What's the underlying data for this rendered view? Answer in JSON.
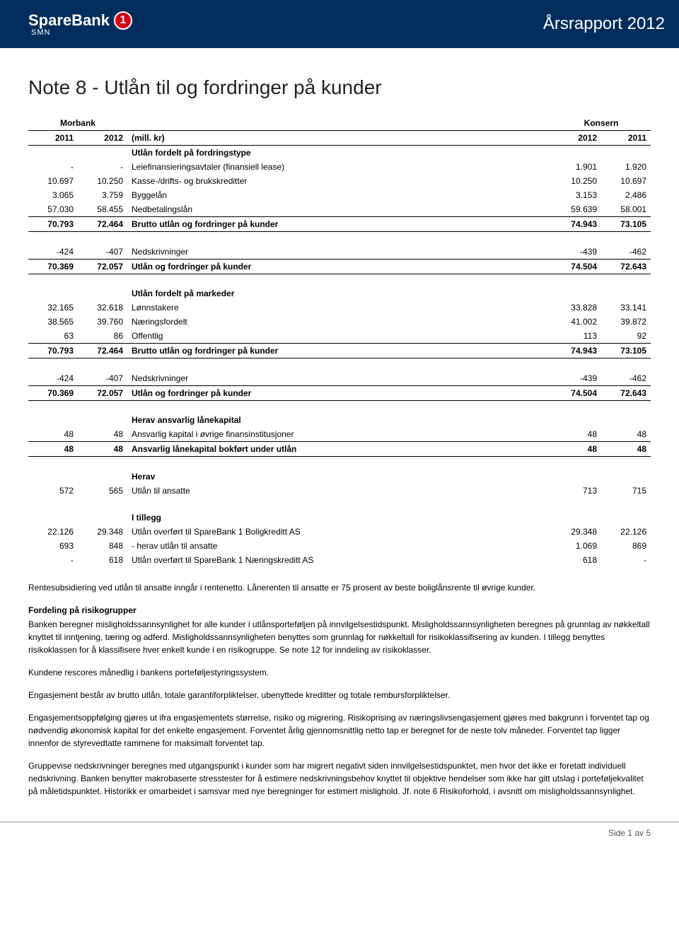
{
  "header": {
    "brand": "SpareBank",
    "badge": "1",
    "sub": "SMN",
    "title": "Årsrapport 2012"
  },
  "page_title": "Note 8 - Utlån til og fordringer på kunder",
  "table": {
    "group_left": "Morbank",
    "group_right": "Konsern",
    "col1": "2011",
    "col2": "2012",
    "col_mid": "(mill. kr)",
    "col3": "2012",
    "col4": "2011",
    "sections": [
      {
        "head": "Utlån fordelt på fordringstype",
        "rows": [
          {
            "a": "-",
            "b": "-",
            "l": "Leiefinansieringsavtaler (finansiell lease)",
            "c": "1.901",
            "d": "1.920"
          },
          {
            "a": "10.697",
            "b": "10.250",
            "l": "Kasse-/drifts- og brukskreditter",
            "c": "10.250",
            "d": "10.697"
          },
          {
            "a": "3.065",
            "b": "3.759",
            "l": "Byggelån",
            "c": "3.153",
            "d": "2.486"
          },
          {
            "a": "57.030",
            "b": "58.455",
            "l": "Nedbetalingslån",
            "c": "59.639",
            "d": "58.001"
          }
        ],
        "total": {
          "a": "70.793",
          "b": "72.464",
          "l": "Brutto utlån og fordringer på kunder",
          "c": "74.943",
          "d": "73.105"
        }
      },
      {
        "rows": [
          {
            "a": "-424",
            "b": "-407",
            "l": "Nedskrivninger",
            "c": "-439",
            "d": "-462"
          }
        ],
        "total": {
          "a": "70.369",
          "b": "72.057",
          "l": "Utlån og fordringer på kunder",
          "c": "74.504",
          "d": "72.643"
        }
      },
      {
        "head": "Utlån fordelt på markeder",
        "rows": [
          {
            "a": "32.165",
            "b": "32.618",
            "l": "Lønnstakere",
            "c": "33.828",
            "d": "33.141"
          },
          {
            "a": "38.565",
            "b": "39.760",
            "l": "Næringsfordelt",
            "c": "41.002",
            "d": "39.872"
          },
          {
            "a": "63",
            "b": "86",
            "l": "Offentlig",
            "c": "113",
            "d": "92"
          }
        ],
        "total": {
          "a": "70.793",
          "b": "72.464",
          "l": "Brutto utlån og fordringer på kunder",
          "c": "74.943",
          "d": "73.105"
        }
      },
      {
        "rows": [
          {
            "a": "-424",
            "b": "-407",
            "l": "Nedskrivninger",
            "c": "-439",
            "d": "-462"
          }
        ],
        "total": {
          "a": "70.369",
          "b": "72.057",
          "l": "Utlån og fordringer på kunder",
          "c": "74.504",
          "d": "72.643"
        }
      },
      {
        "head": "Herav ansvarlig lånekapital",
        "rows": [
          {
            "a": "48",
            "b": "48",
            "l": "Ansvarlig kapital i øvrige finansinstitusjoner",
            "c": "48",
            "d": "48"
          }
        ],
        "total": {
          "a": "48",
          "b": "48",
          "l": "Ansvarlig lånekapital bokført under utlån",
          "c": "48",
          "d": "48"
        }
      },
      {
        "head": "Herav",
        "rows": [
          {
            "a": "572",
            "b": "565",
            "l": "Utlån til ansatte",
            "c": "713",
            "d": "715"
          }
        ]
      },
      {
        "head": "I tillegg",
        "rows": [
          {
            "a": "22.126",
            "b": "29.348",
            "l": "Utlån overført til SpareBank 1 Boligkreditt AS",
            "c": "29.348",
            "d": "22.126"
          },
          {
            "a": "693",
            "b": "848",
            "l": "- herav utlån til ansatte",
            "c": "1.069",
            "d": "869"
          },
          {
            "a": "-",
            "b": "618",
            "l": "Utlån overført til SpareBank 1 Næringskreditt AS",
            "c": "618",
            "d": "-"
          }
        ]
      }
    ]
  },
  "paragraphs": [
    {
      "bold": false,
      "text": "Rentesubsidiering ved utlån til ansatte inngår i rentenetto. Lånerenten til ansatte er 75 prosent av beste boliglånsrente til øvrige kunder."
    },
    {
      "bold": true,
      "text": "Fordeling på risikogrupper"
    },
    {
      "bold": false,
      "text": "Banken beregner misligholdssannsynlighet for alle kunder i utlånsporteføljen på innvilgelsestidspunkt. Misligholdssannsynligheten beregnes på grunnlag av nøkkeltall knyttet til inntjening, tæring og adferd. Misligholdssannsynligheten benyttes som grunnlag for nøkkeltall for risikoklassifisering av kunden. I tillegg benyttes risikoklassen for å klassifisere hver enkelt kunde i en risikogruppe. Se note 12 for inndeling av risikoklasser."
    },
    {
      "bold": false,
      "text": "Kundene rescores månedlig i bankens porteføljestyringssystem."
    },
    {
      "bold": false,
      "text": "Engasjement består av brutto utlån, totale garantiforpliktelser, ubenyttede kreditter og totale rembursforpliktelser."
    },
    {
      "bold": false,
      "text": "Engasjementsoppfølging gjøres ut ifra engasjementets størrelse, risiko og migrering. Risikoprising av næringslivsengasjement gjøres med bakgrunn i forventet tap og nødvendig økonomisk kapital for det enkelte engasjement. Forventet årlig gjennomsnittlig netto tap er beregnet for de neste tolv måneder. Forventet tap ligger innenfor de styrevedtatte rammene for maksimalt forventet tap."
    },
    {
      "bold": false,
      "text": "Gruppevise nedskrivninger beregnes med utgangspunkt i kunder som har migrert negativt siden innvilgelsestidspunktet, men hvor det ikke er foretatt individuell nedskrivning. Banken benytter makrobaserte stresstester for å estimere nedskrivningsbehov knyttet til objektive hendelser som ikke har gitt utslag i porteføljekvalitet på måletidspunktet. Historikk er omarbeidet i samsvar med nye beregninger for estimert mislighold. Jf. note 6 Risikoforhold, i avsnitt om misligholdssannsynlighet."
    }
  ],
  "footer": "Side 1 av 5"
}
